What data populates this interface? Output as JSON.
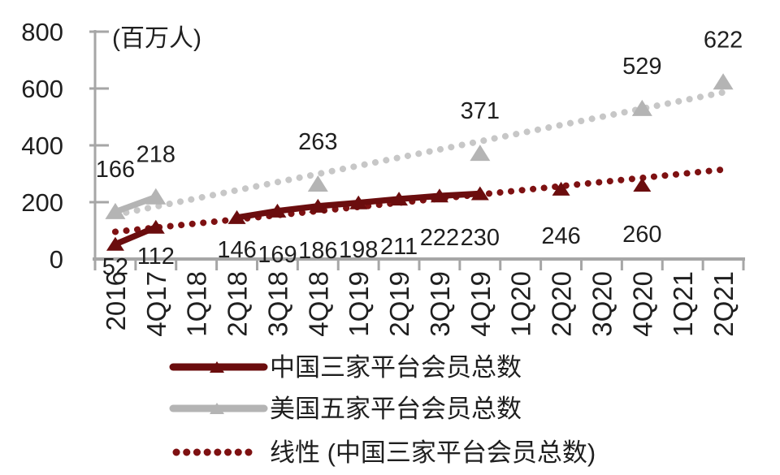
{
  "chart_data": {
    "type": "line",
    "unit_label": "(百万人)",
    "categories": [
      "2016",
      "4Q17",
      "1Q18",
      "2Q18",
      "3Q18",
      "4Q18",
      "1Q19",
      "2Q19",
      "3Q19",
      "4Q19",
      "1Q20",
      "2Q20",
      "3Q20",
      "4Q20",
      "1Q21",
      "2Q21"
    ],
    "ylim": [
      0,
      800
    ],
    "yticks": [
      0,
      200,
      400,
      600,
      800
    ],
    "grid": false,
    "legend_position": "bottom",
    "axis_color": "#A6A6A6",
    "text_color": "#1f1f1f",
    "series": [
      {
        "name": "中国三家平台会员总数",
        "color": "#6B0D0E",
        "marker": "triangle",
        "data_label_position": "below",
        "points": [
          {
            "category": "2016",
            "value": 52
          },
          {
            "category": "4Q17",
            "value": 112
          },
          {
            "category": "2Q18",
            "value": 146
          },
          {
            "category": "3Q18",
            "value": 169
          },
          {
            "category": "4Q18",
            "value": 186
          },
          {
            "category": "1Q19",
            "value": 198
          },
          {
            "category": "2Q19",
            "value": 211
          },
          {
            "category": "3Q19",
            "value": 222
          },
          {
            "category": "4Q19",
            "value": 230
          },
          {
            "category": "2Q20",
            "value": 246
          },
          {
            "category": "4Q20",
            "value": 260
          }
        ],
        "connected_runs": [
          [
            "2016",
            "4Q17"
          ],
          [
            "2Q18",
            "4Q19"
          ]
        ]
      },
      {
        "name": "美国五家平台会员总数",
        "color": "#B4B4B4",
        "marker": "triangle",
        "data_label_position": "above",
        "points": [
          {
            "category": "2016",
            "value": 166
          },
          {
            "category": "4Q17",
            "value": 218
          },
          {
            "category": "4Q18",
            "value": 263
          },
          {
            "category": "4Q19",
            "value": 371
          },
          {
            "category": "4Q20",
            "value": 529
          },
          {
            "category": "2Q21",
            "value": 622
          }
        ],
        "connected_runs": [
          [
            "2016",
            "4Q17"
          ]
        ]
      }
    ],
    "trendlines": [
      {
        "series_index": 0,
        "style": "dotted",
        "color": "#7E1112",
        "in_legend": true
      },
      {
        "series_index": 1,
        "style": "dotted",
        "color": "#C7C7C7",
        "in_legend": false
      }
    ],
    "legend": {
      "items": [
        {
          "label": "中国三家平台会员总数",
          "swatch": "line-marker",
          "color": "#6B0D0E"
        },
        {
          "label": "美国五家平台会员总数",
          "swatch": "line-marker",
          "color": "#B4B4B4"
        },
        {
          "label": "线性 (中国三家平台会员总数)",
          "swatch": "dotted-line",
          "color": "#7E1112"
        }
      ]
    }
  }
}
